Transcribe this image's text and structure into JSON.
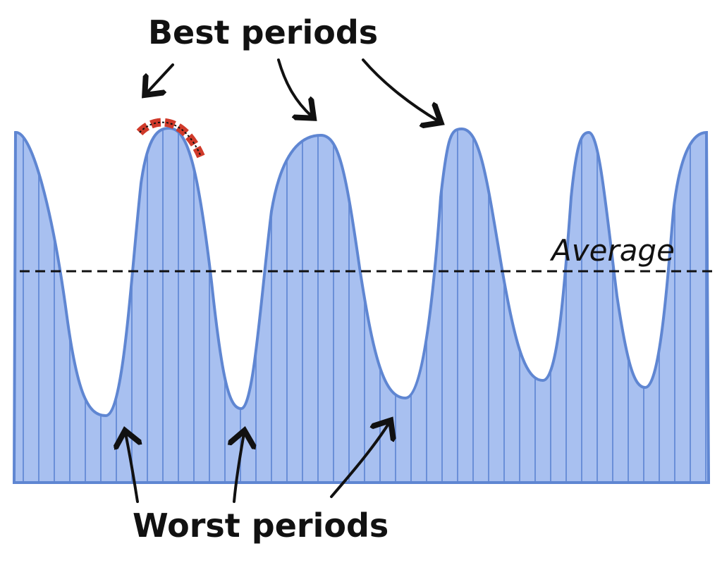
{
  "labels": {
    "best": "Best periods",
    "average": "Average",
    "worst": "Worst periods"
  }
}
